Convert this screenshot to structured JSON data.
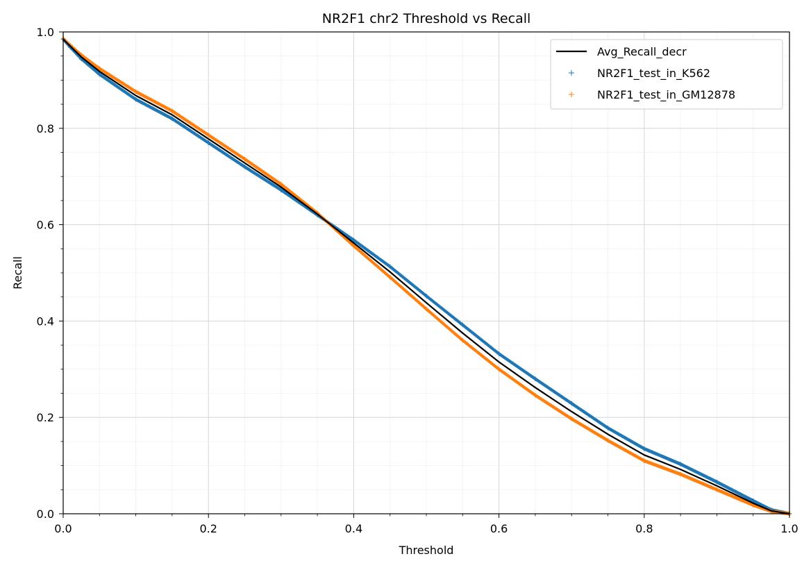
{
  "chart_data": {
    "type": "scatter",
    "title": "NR2F1 chr2 Threshold vs Recall",
    "xlabel": "Threshold",
    "ylabel": "Recall",
    "xlim": [
      0.0,
      1.0
    ],
    "ylim": [
      0.0,
      1.0
    ],
    "xticks": [
      "0.0",
      "0.2",
      "0.4",
      "0.6",
      "0.8",
      "1.0"
    ],
    "yticks": [
      "0.0",
      "0.2",
      "0.4",
      "0.6",
      "0.8",
      "1.0"
    ],
    "grid": true,
    "legend_position": "top-right",
    "series": [
      {
        "name": "Avg_Recall_decr",
        "kind": "line",
        "color": "#000000",
        "x": [
          0.0,
          0.01,
          0.025,
          0.05,
          0.1,
          0.15,
          0.2,
          0.25,
          0.3,
          0.35,
          0.4,
          0.45,
          0.5,
          0.55,
          0.6,
          0.65,
          0.7,
          0.75,
          0.8,
          0.85,
          0.9,
          0.95,
          0.975,
          1.0
        ],
        "y": [
          0.985,
          0.97,
          0.948,
          0.918,
          0.868,
          0.828,
          0.778,
          0.728,
          0.678,
          0.622,
          0.562,
          0.502,
          0.438,
          0.375,
          0.315,
          0.262,
          0.212,
          0.165,
          0.122,
          0.092,
          0.058,
          0.022,
          0.006,
          0.0
        ]
      },
      {
        "name": "NR2F1_test_in_K562",
        "kind": "scatter",
        "marker": "+",
        "color": "#1f77b4",
        "x": [
          0.0,
          0.01,
          0.025,
          0.05,
          0.1,
          0.15,
          0.2,
          0.25,
          0.3,
          0.35,
          0.4,
          0.45,
          0.5,
          0.55,
          0.6,
          0.65,
          0.7,
          0.75,
          0.8,
          0.85,
          0.9,
          0.95,
          0.975,
          1.0
        ],
        "y": [
          0.985,
          0.968,
          0.944,
          0.912,
          0.86,
          0.82,
          0.77,
          0.72,
          0.672,
          0.62,
          0.568,
          0.513,
          0.452,
          0.392,
          0.332,
          0.28,
          0.229,
          0.178,
          0.135,
          0.103,
          0.066,
          0.027,
          0.008,
          0.0
        ]
      },
      {
        "name": "NR2F1_test_in_GM12878",
        "kind": "scatter",
        "marker": "+",
        "color": "#ff7f0e",
        "x": [
          0.0,
          0.01,
          0.025,
          0.05,
          0.1,
          0.15,
          0.2,
          0.25,
          0.3,
          0.35,
          0.4,
          0.45,
          0.5,
          0.55,
          0.6,
          0.65,
          0.7,
          0.75,
          0.8,
          0.85,
          0.9,
          0.95,
          0.975,
          1.0
        ],
        "y": [
          0.986,
          0.972,
          0.952,
          0.924,
          0.876,
          0.836,
          0.786,
          0.736,
          0.684,
          0.624,
          0.556,
          0.491,
          0.425,
          0.36,
          0.3,
          0.246,
          0.197,
          0.152,
          0.11,
          0.082,
          0.05,
          0.018,
          0.005,
          0.0
        ]
      }
    ]
  }
}
